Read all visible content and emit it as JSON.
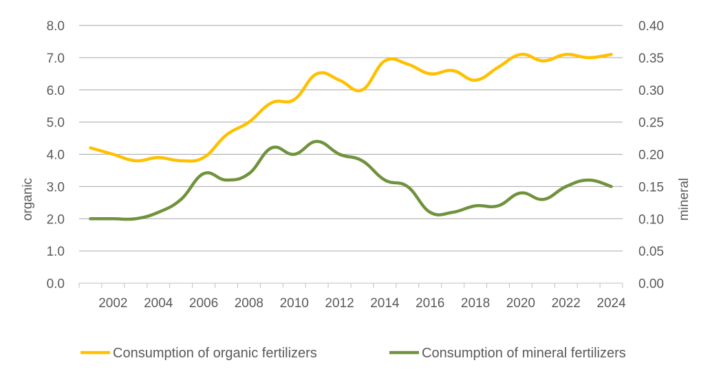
{
  "chart_data": {
    "type": "line",
    "x": [
      2001,
      2002,
      2003,
      2004,
      2005,
      2006,
      2007,
      2008,
      2009,
      2010,
      2011,
      2012,
      2013,
      2014,
      2015,
      2016,
      2017,
      2018,
      2019,
      2020,
      2021,
      2022,
      2023,
      2024
    ],
    "x_ticks": [
      "2002",
      "2004",
      "2006",
      "2008",
      "2010",
      "2012",
      "2014",
      "2016",
      "2018",
      "2020",
      "2022",
      "2024"
    ],
    "y_left": {
      "label": "organic",
      "range": [
        0,
        8
      ],
      "ticks": [
        "0.0",
        "1.0",
        "2.0",
        "3.0",
        "4.0",
        "5.0",
        "6.0",
        "7.0",
        "8.0"
      ]
    },
    "y_right": {
      "label": "mineral",
      "range": [
        0,
        0.4
      ],
      "ticks": [
        "0.00",
        "0.05",
        "0.10",
        "0.15",
        "0.20",
        "0.25",
        "0.30",
        "0.35",
        "0.40"
      ]
    },
    "series": [
      {
        "name": "Consumption of organic fertilizers",
        "axis": "left",
        "color": "#FFC000",
        "values": [
          4.2,
          4.0,
          3.8,
          3.9,
          3.8,
          3.9,
          4.6,
          5.0,
          5.6,
          5.7,
          6.5,
          6.3,
          6.0,
          6.9,
          6.8,
          6.5,
          6.6,
          6.3,
          6.7,
          7.1,
          6.9,
          7.1,
          7.0,
          7.1
        ]
      },
      {
        "name": "Consumption of mineral fertilizers",
        "axis": "right",
        "color": "#70923C",
        "values": [
          0.1,
          0.1,
          0.1,
          0.11,
          0.13,
          0.17,
          0.16,
          0.17,
          0.21,
          0.2,
          0.22,
          0.2,
          0.19,
          0.16,
          0.15,
          0.11,
          0.11,
          0.12,
          0.12,
          0.14,
          0.13,
          0.15,
          0.16,
          0.15
        ]
      }
    ],
    "gridlines": true,
    "legend": "bottom"
  }
}
